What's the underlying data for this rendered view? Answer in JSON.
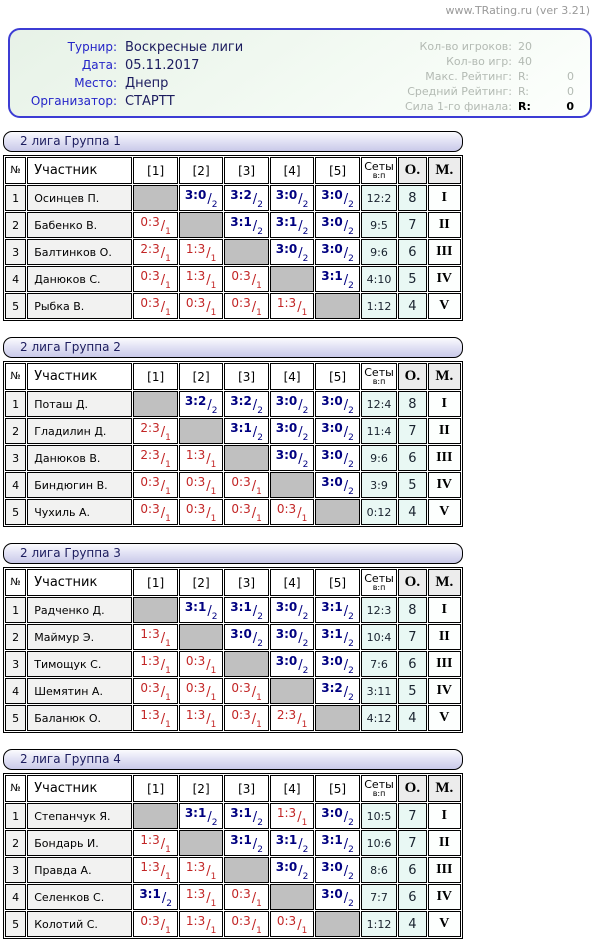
{
  "site": {
    "title": "www.TRating.ru (ver 3.21)"
  },
  "tournament": {
    "fields": [
      {
        "label": "Турнир:",
        "value": "Воскресные лиги"
      },
      {
        "label": "Дата:",
        "value": "05.11.2017"
      },
      {
        "label": "Место:",
        "value": "Днепр"
      },
      {
        "label": "Организатор:",
        "value": "СТАРТТ"
      }
    ],
    "stats": [
      {
        "label": "Кол-во игроков:",
        "v1": "20",
        "v2": "",
        "strong": false
      },
      {
        "label": "Кол-во игр:",
        "v1": "40",
        "v2": "",
        "strong": false
      },
      {
        "label": "Макс. Рейтинг:",
        "v1": "R:",
        "v2": "0",
        "strong": false
      },
      {
        "label": "Средний Рейтинг:",
        "v1": "R:",
        "v2": "0",
        "strong": false
      },
      {
        "label": "Сила 1-го финала:",
        "v1": "R:",
        "v2": "0",
        "strong": true
      }
    ]
  },
  "columns": {
    "num": "№",
    "participant": "Участник",
    "opponents": [
      "[1]",
      "[2]",
      "[3]",
      "[4]",
      "[5]"
    ],
    "sets": "Сеты",
    "sets_sub": "в:п",
    "points": "О.",
    "place": "М."
  },
  "colors": {
    "win": "#000080",
    "loss": "#c22525",
    "diagonal": "#c0c0c0",
    "accent_border": "#3c3cd4"
  },
  "groups": [
    {
      "title": "2 лига Группа 1",
      "players": [
        {
          "num": "1",
          "name": "Осинцев П.",
          "results": [
            null,
            {
              "s": "3:0",
              "g": "2",
              "w": true
            },
            {
              "s": "3:2",
              "g": "2",
              "w": true
            },
            {
              "s": "3:0",
              "g": "2",
              "w": true
            },
            {
              "s": "3:0",
              "g": "2",
              "w": true
            }
          ],
          "sets": "12:2",
          "points": "8",
          "place": "I"
        },
        {
          "num": "2",
          "name": "Бабенко В.",
          "results": [
            {
              "s": "0:3",
              "g": "1",
              "w": false
            },
            null,
            {
              "s": "3:1",
              "g": "2",
              "w": true
            },
            {
              "s": "3:1",
              "g": "2",
              "w": true
            },
            {
              "s": "3:0",
              "g": "2",
              "w": true
            }
          ],
          "sets": "9:5",
          "points": "7",
          "place": "II"
        },
        {
          "num": "3",
          "name": "Балтинков О.",
          "results": [
            {
              "s": "2:3",
              "g": "1",
              "w": false
            },
            {
              "s": "1:3",
              "g": "1",
              "w": false
            },
            null,
            {
              "s": "3:0",
              "g": "2",
              "w": true
            },
            {
              "s": "3:0",
              "g": "2",
              "w": true
            }
          ],
          "sets": "9:6",
          "points": "6",
          "place": "III"
        },
        {
          "num": "4",
          "name": "Данюков С.",
          "results": [
            {
              "s": "0:3",
              "g": "1",
              "w": false
            },
            {
              "s": "1:3",
              "g": "1",
              "w": false
            },
            {
              "s": "0:3",
              "g": "1",
              "w": false
            },
            null,
            {
              "s": "3:1",
              "g": "2",
              "w": true
            }
          ],
          "sets": "4:10",
          "points": "5",
          "place": "IV"
        },
        {
          "num": "5",
          "name": "Рыбка В.",
          "results": [
            {
              "s": "0:3",
              "g": "1",
              "w": false
            },
            {
              "s": "0:3",
              "g": "1",
              "w": false
            },
            {
              "s": "0:3",
              "g": "1",
              "w": false
            },
            {
              "s": "1:3",
              "g": "1",
              "w": false
            },
            null
          ],
          "sets": "1:12",
          "points": "4",
          "place": "V"
        }
      ]
    },
    {
      "title": "2 лига Группа 2",
      "players": [
        {
          "num": "1",
          "name": "Поташ Д.",
          "results": [
            null,
            {
              "s": "3:2",
              "g": "2",
              "w": true
            },
            {
              "s": "3:2",
              "g": "2",
              "w": true
            },
            {
              "s": "3:0",
              "g": "2",
              "w": true
            },
            {
              "s": "3:0",
              "g": "2",
              "w": true
            }
          ],
          "sets": "12:4",
          "points": "8",
          "place": "I"
        },
        {
          "num": "2",
          "name": "Гладилин Д.",
          "results": [
            {
              "s": "2:3",
              "g": "1",
              "w": false
            },
            null,
            {
              "s": "3:1",
              "g": "2",
              "w": true
            },
            {
              "s": "3:0",
              "g": "2",
              "w": true
            },
            {
              "s": "3:0",
              "g": "2",
              "w": true
            }
          ],
          "sets": "11:4",
          "points": "7",
          "place": "II"
        },
        {
          "num": "3",
          "name": "Данюков В.",
          "results": [
            {
              "s": "2:3",
              "g": "1",
              "w": false
            },
            {
              "s": "1:3",
              "g": "1",
              "w": false
            },
            null,
            {
              "s": "3:0",
              "g": "2",
              "w": true
            },
            {
              "s": "3:0",
              "g": "2",
              "w": true
            }
          ],
          "sets": "9:6",
          "points": "6",
          "place": "III"
        },
        {
          "num": "4",
          "name": "Биндюгин В.",
          "results": [
            {
              "s": "0:3",
              "g": "1",
              "w": false
            },
            {
              "s": "0:3",
              "g": "1",
              "w": false
            },
            {
              "s": "0:3",
              "g": "1",
              "w": false
            },
            null,
            {
              "s": "3:0",
              "g": "2",
              "w": true
            }
          ],
          "sets": "3:9",
          "points": "5",
          "place": "IV"
        },
        {
          "num": "5",
          "name": "Чухиль А.",
          "results": [
            {
              "s": "0:3",
              "g": "1",
              "w": false
            },
            {
              "s": "0:3",
              "g": "1",
              "w": false
            },
            {
              "s": "0:3",
              "g": "1",
              "w": false
            },
            {
              "s": "0:3",
              "g": "1",
              "w": false
            },
            null
          ],
          "sets": "0:12",
          "points": "4",
          "place": "V"
        }
      ]
    },
    {
      "title": "2 лига Группа 3",
      "players": [
        {
          "num": "1",
          "name": "Радченко Д.",
          "results": [
            null,
            {
              "s": "3:1",
              "g": "2",
              "w": true
            },
            {
              "s": "3:1",
              "g": "2",
              "w": true
            },
            {
              "s": "3:0",
              "g": "2",
              "w": true
            },
            {
              "s": "3:1",
              "g": "2",
              "w": true
            }
          ],
          "sets": "12:3",
          "points": "8",
          "place": "I"
        },
        {
          "num": "2",
          "name": "Маймур Э.",
          "results": [
            {
              "s": "1:3",
              "g": "1",
              "w": false
            },
            null,
            {
              "s": "3:0",
              "g": "2",
              "w": true
            },
            {
              "s": "3:0",
              "g": "2",
              "w": true
            },
            {
              "s": "3:1",
              "g": "2",
              "w": true
            }
          ],
          "sets": "10:4",
          "points": "7",
          "place": "II"
        },
        {
          "num": "3",
          "name": "Тимощук С.",
          "results": [
            {
              "s": "1:3",
              "g": "1",
              "w": false
            },
            {
              "s": "0:3",
              "g": "1",
              "w": false
            },
            null,
            {
              "s": "3:0",
              "g": "2",
              "w": true
            },
            {
              "s": "3:0",
              "g": "2",
              "w": true
            }
          ],
          "sets": "7:6",
          "points": "6",
          "place": "III"
        },
        {
          "num": "4",
          "name": "Шемятин А.",
          "results": [
            {
              "s": "0:3",
              "g": "1",
              "w": false
            },
            {
              "s": "0:3",
              "g": "1",
              "w": false
            },
            {
              "s": "0:3",
              "g": "1",
              "w": false
            },
            null,
            {
              "s": "3:2",
              "g": "2",
              "w": true
            }
          ],
          "sets": "3:11",
          "points": "5",
          "place": "IV"
        },
        {
          "num": "5",
          "name": "Баланюк О.",
          "results": [
            {
              "s": "1:3",
              "g": "1",
              "w": false
            },
            {
              "s": "1:3",
              "g": "1",
              "w": false
            },
            {
              "s": "0:3",
              "g": "1",
              "w": false
            },
            {
              "s": "2:3",
              "g": "1",
              "w": false
            },
            null
          ],
          "sets": "4:12",
          "points": "4",
          "place": "V"
        }
      ]
    },
    {
      "title": "2 лига Группа 4",
      "players": [
        {
          "num": "1",
          "name": "Степанчук Я.",
          "results": [
            null,
            {
              "s": "3:1",
              "g": "2",
              "w": true
            },
            {
              "s": "3:1",
              "g": "2",
              "w": true
            },
            {
              "s": "1:3",
              "g": "1",
              "w": false
            },
            {
              "s": "3:0",
              "g": "2",
              "w": true
            }
          ],
          "sets": "10:5",
          "points": "7",
          "place": "I"
        },
        {
          "num": "2",
          "name": "Бондарь И.",
          "results": [
            {
              "s": "1:3",
              "g": "1",
              "w": false
            },
            null,
            {
              "s": "3:1",
              "g": "2",
              "w": true
            },
            {
              "s": "3:1",
              "g": "2",
              "w": true
            },
            {
              "s": "3:1",
              "g": "2",
              "w": true
            }
          ],
          "sets": "10:6",
          "points": "7",
          "place": "II"
        },
        {
          "num": "3",
          "name": "Правда А.",
          "results": [
            {
              "s": "1:3",
              "g": "1",
              "w": false
            },
            {
              "s": "1:3",
              "g": "1",
              "w": false
            },
            null,
            {
              "s": "3:0",
              "g": "2",
              "w": true
            },
            {
              "s": "3:0",
              "g": "2",
              "w": true
            }
          ],
          "sets": "8:6",
          "points": "6",
          "place": "III"
        },
        {
          "num": "4",
          "name": "Селенков С.",
          "results": [
            {
              "s": "3:1",
              "g": "2",
              "w": true
            },
            {
              "s": "1:3",
              "g": "1",
              "w": false
            },
            {
              "s": "0:3",
              "g": "1",
              "w": false
            },
            null,
            {
              "s": "3:0",
              "g": "2",
              "w": true
            }
          ],
          "sets": "7:7",
          "points": "6",
          "place": "IV"
        },
        {
          "num": "5",
          "name": "Колотий С.",
          "results": [
            {
              "s": "0:3",
              "g": "1",
              "w": false
            },
            {
              "s": "1:3",
              "g": "1",
              "w": false
            },
            {
              "s": "0:3",
              "g": "1",
              "w": false
            },
            {
              "s": "0:3",
              "g": "1",
              "w": false
            },
            null
          ],
          "sets": "1:12",
          "points": "4",
          "place": "V"
        }
      ]
    }
  ]
}
